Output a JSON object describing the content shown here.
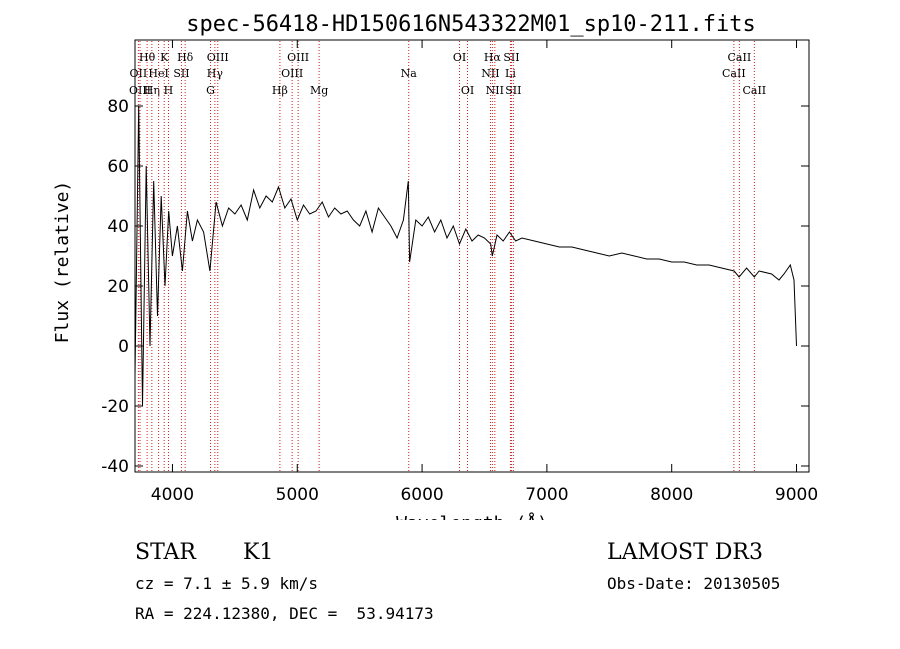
{
  "chart_data": {
    "type": "line",
    "title": "spec-56418-HD150616N543322M01_sp10-211.fits",
    "xlabel": "Wavelength (Å)",
    "ylabel": "Flux (relative)",
    "xlim": [
      3700,
      9100
    ],
    "ylim": [
      -42,
      102
    ],
    "xticks": [
      4000,
      5000,
      6000,
      7000,
      8000,
      9000
    ],
    "yticks": [
      -40,
      -20,
      0,
      20,
      40,
      60,
      80
    ],
    "grid": false,
    "series": [
      {
        "name": "flux",
        "x": [
          3700,
          3730,
          3760,
          3790,
          3820,
          3850,
          3880,
          3910,
          3940,
          3970,
          4000,
          4040,
          4080,
          4120,
          4160,
          4200,
          4250,
          4300,
          4350,
          4400,
          4450,
          4500,
          4550,
          4600,
          4650,
          4700,
          4750,
          4800,
          4850,
          4900,
          4950,
          5000,
          5050,
          5100,
          5150,
          5200,
          5250,
          5300,
          5350,
          5400,
          5450,
          5500,
          5550,
          5600,
          5650,
          5700,
          5750,
          5800,
          5850,
          5890,
          5900,
          5950,
          6000,
          6050,
          6100,
          6150,
          6200,
          6250,
          6300,
          6350,
          6400,
          6450,
          6500,
          6550,
          6563,
          6600,
          6650,
          6700,
          6750,
          6800,
          6900,
          7000,
          7100,
          7200,
          7300,
          7400,
          7500,
          7600,
          7700,
          7800,
          7900,
          8000,
          8100,
          8200,
          8300,
          8400,
          8500,
          8540,
          8600,
          8662,
          8700,
          8800,
          8860,
          8900,
          8950,
          8980,
          9000
        ],
        "y": [
          -10,
          80,
          -20,
          60,
          0,
          55,
          10,
          50,
          20,
          45,
          30,
          40,
          25,
          45,
          35,
          42,
          38,
          25,
          48,
          40,
          46,
          44,
          47,
          42,
          52,
          46,
          50,
          48,
          53,
          46,
          49,
          42,
          47,
          44,
          45,
          48,
          43,
          46,
          44,
          45,
          42,
          40,
          45,
          38,
          46,
          43,
          40,
          36,
          42,
          55,
          28,
          42,
          40,
          43,
          38,
          42,
          36,
          40,
          34,
          39,
          35,
          37,
          36,
          34,
          30,
          37,
          35,
          38,
          35,
          36,
          35,
          34,
          33,
          33,
          32,
          31,
          30,
          31,
          30,
          29,
          29,
          28,
          28,
          27,
          27,
          26,
          25,
          23,
          26,
          23,
          25,
          24,
          22,
          24,
          27,
          22,
          0
        ]
      }
    ],
    "lines": [
      {
        "label": "Hθ",
        "w": 3797,
        "row": 1
      },
      {
        "label": "OII",
        "w": 3727,
        "row": 2
      },
      {
        "label": "OIII",
        "w": 3740,
        "row": 3
      },
      {
        "label": "Hη",
        "w": 3835,
        "row": 3
      },
      {
        "label": "HeI",
        "w": 3889,
        "row": 2
      },
      {
        "label": "K",
        "w": 3934,
        "row": 1
      },
      {
        "label": "H",
        "w": 3968,
        "row": 3
      },
      {
        "label": "SII",
        "w": 4072,
        "row": 2
      },
      {
        "label": "Hδ",
        "w": 4102,
        "row": 1
      },
      {
        "label": "G",
        "w": 4305,
        "row": 3
      },
      {
        "label": "Hγ",
        "w": 4340,
        "row": 2
      },
      {
        "label": "OIII",
        "w": 4363,
        "row": 1
      },
      {
        "label": "Hβ",
        "w": 4861,
        "row": 3
      },
      {
        "label": "OIII",
        "w": 4959,
        "row": 2
      },
      {
        "label": "OIII",
        "w": 5007,
        "row": 1
      },
      {
        "label": "Mg",
        "w": 5175,
        "row": 3
      },
      {
        "label": "Na",
        "w": 5893,
        "row": 2
      },
      {
        "label": "OI",
        "w": 6300,
        "row": 1
      },
      {
        "label": "OI",
        "w": 6364,
        "row": 3
      },
      {
        "label": "NII",
        "w": 6548,
        "row": 2
      },
      {
        "label": "Hα",
        "w": 6563,
        "row": 1
      },
      {
        "label": "NII",
        "w": 6583,
        "row": 3
      },
      {
        "label": "Li",
        "w": 6708,
        "row": 2
      },
      {
        "label": "SII",
        "w": 6716,
        "row": 1
      },
      {
        "label": "SII",
        "w": 6731,
        "row": 3
      },
      {
        "label": "CaII",
        "w": 8498,
        "row": 2
      },
      {
        "label": "CaII",
        "w": 8542,
        "row": 1
      },
      {
        "label": "CaII",
        "w": 8662,
        "row": 3
      }
    ]
  },
  "info": {
    "object_class": "STAR",
    "subclass": "K1",
    "survey": "LAMOST DR3",
    "cz": "cz = 7.1 ± 5.9 km/s",
    "obs_date": "Obs-Date: 20130505",
    "coords": "RA = 224.12380, DEC =  53.94173"
  },
  "colors": {
    "line_marker": "#cc2222",
    "spectrum": "#000000"
  }
}
